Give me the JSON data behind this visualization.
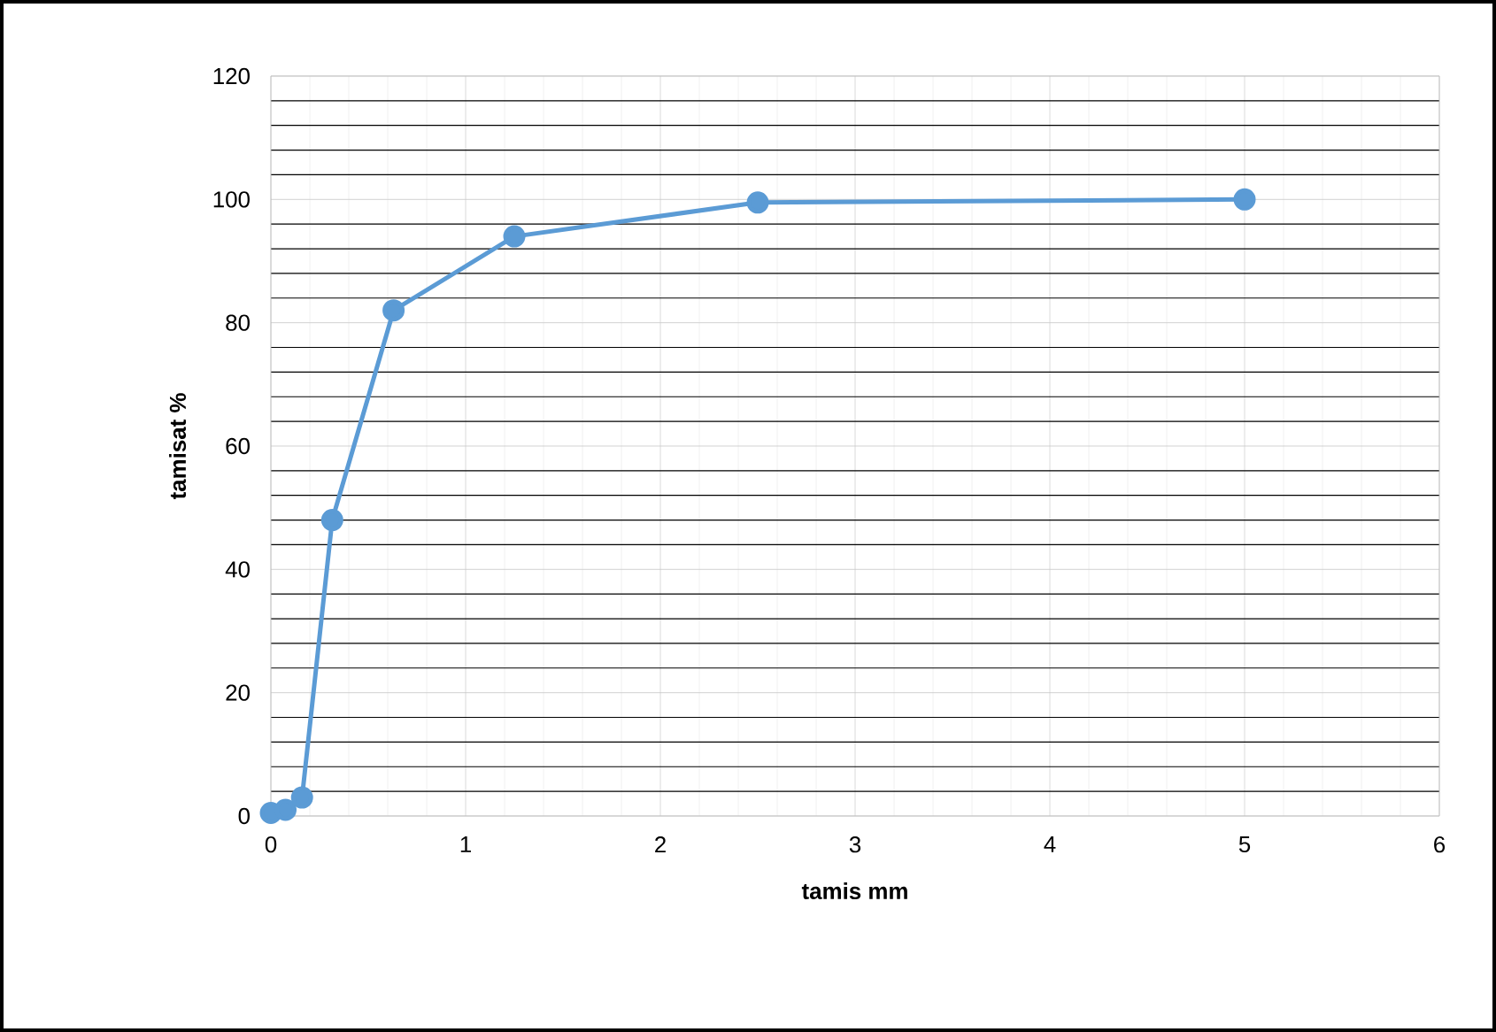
{
  "chart_data": {
    "type": "line",
    "xlabel": "tamis mm",
    "ylabel": "tamisat %",
    "x": [
      0,
      0.075,
      0.16,
      0.315,
      0.63,
      1.25,
      2.5,
      5
    ],
    "values": [
      0.5,
      1,
      3,
      48,
      82,
      94,
      99.5,
      100
    ],
    "color": "#5b9bd5",
    "marker": "circle",
    "grid": true,
    "xlim": [
      0,
      6
    ],
    "xticks": [
      0,
      1,
      2,
      3,
      4,
      5,
      6
    ],
    "ylim": [
      0,
      120
    ],
    "yticks": [
      0,
      20,
      40,
      60,
      80,
      100,
      120
    ]
  }
}
